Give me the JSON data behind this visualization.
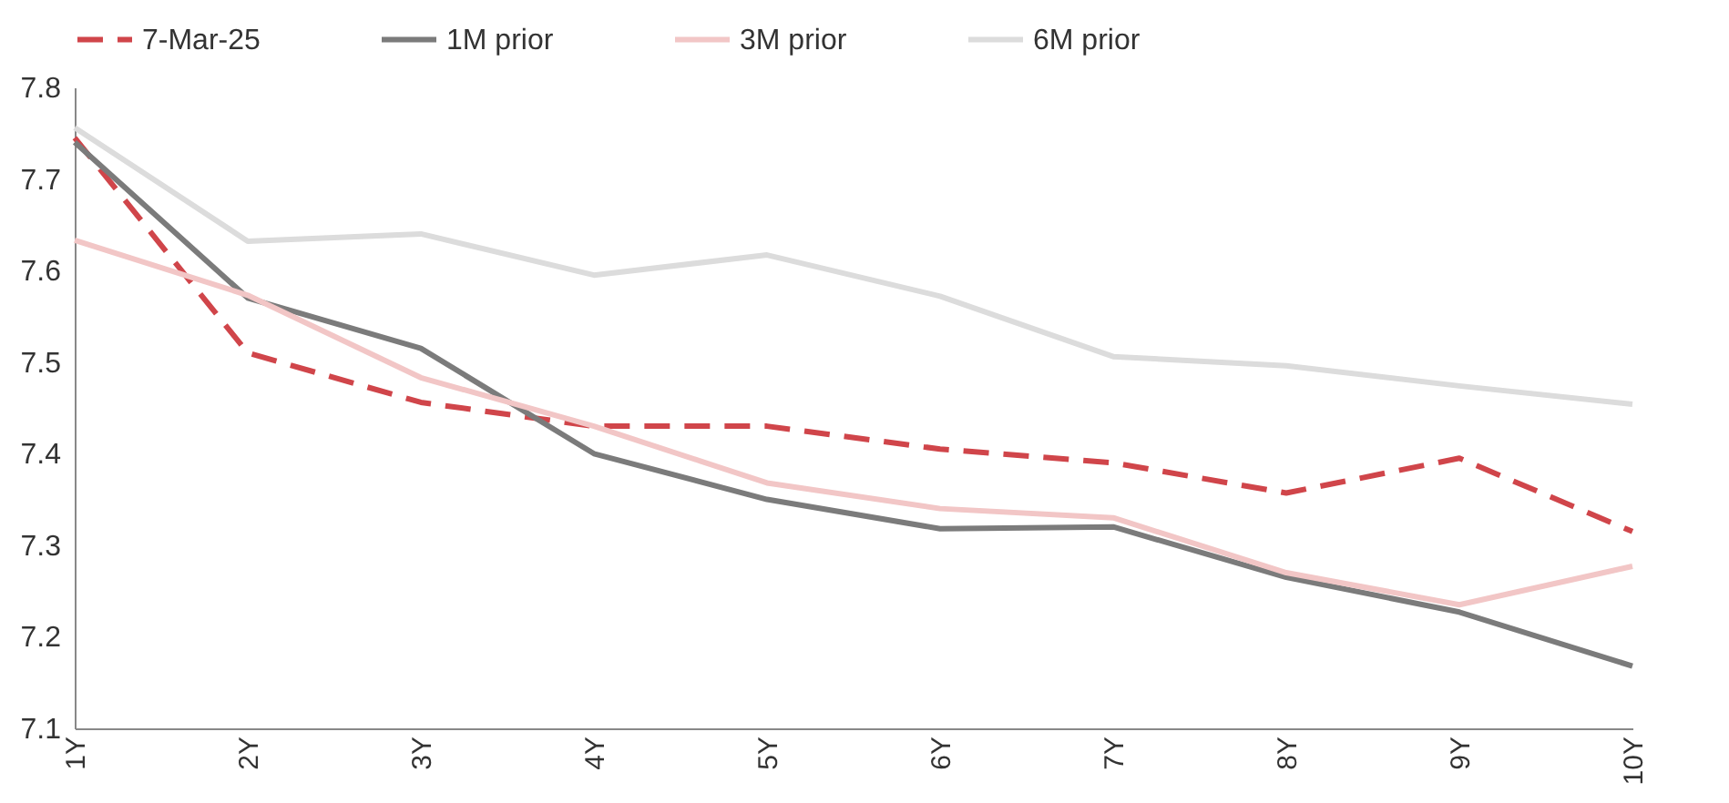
{
  "chart_data": {
    "type": "line",
    "categories": [
      "1Y",
      "2Y",
      "3Y",
      "4Y",
      "5Y",
      "6Y",
      "7Y",
      "8Y",
      "9Y",
      "10Y"
    ],
    "series": [
      {
        "name": "7-Mar-25",
        "color": "#d0454a",
        "line_style": "dashed",
        "values": [
          7.745,
          7.51,
          7.456,
          7.43,
          7.43,
          7.405,
          7.39,
          7.357,
          7.395,
          7.315
        ]
      },
      {
        "name": "1M prior",
        "color": "#7b7b7b",
        "line_style": "solid",
        "values": [
          7.74,
          7.57,
          7.515,
          7.4,
          7.35,
          7.318,
          7.32,
          7.265,
          7.227,
          7.168
        ]
      },
      {
        "name": "3M prior",
        "color": "#f2c6c6",
        "line_style": "solid",
        "values": [
          7.633,
          7.573,
          7.483,
          7.43,
          7.368,
          7.34,
          7.33,
          7.27,
          7.235,
          7.277
        ]
      },
      {
        "name": "6M prior",
        "color": "#dcdcdc",
        "line_style": "solid",
        "values": [
          7.756,
          7.632,
          7.64,
          7.595,
          7.617,
          7.572,
          7.506,
          7.496,
          7.474,
          7.454
        ]
      }
    ],
    "ylim": [
      7.1,
      7.8
    ],
    "yticks": [
      7.1,
      7.2,
      7.3,
      7.4,
      7.5,
      7.6,
      7.7,
      7.8
    ],
    "grid": false,
    "legend": "top",
    "marker": "none"
  }
}
